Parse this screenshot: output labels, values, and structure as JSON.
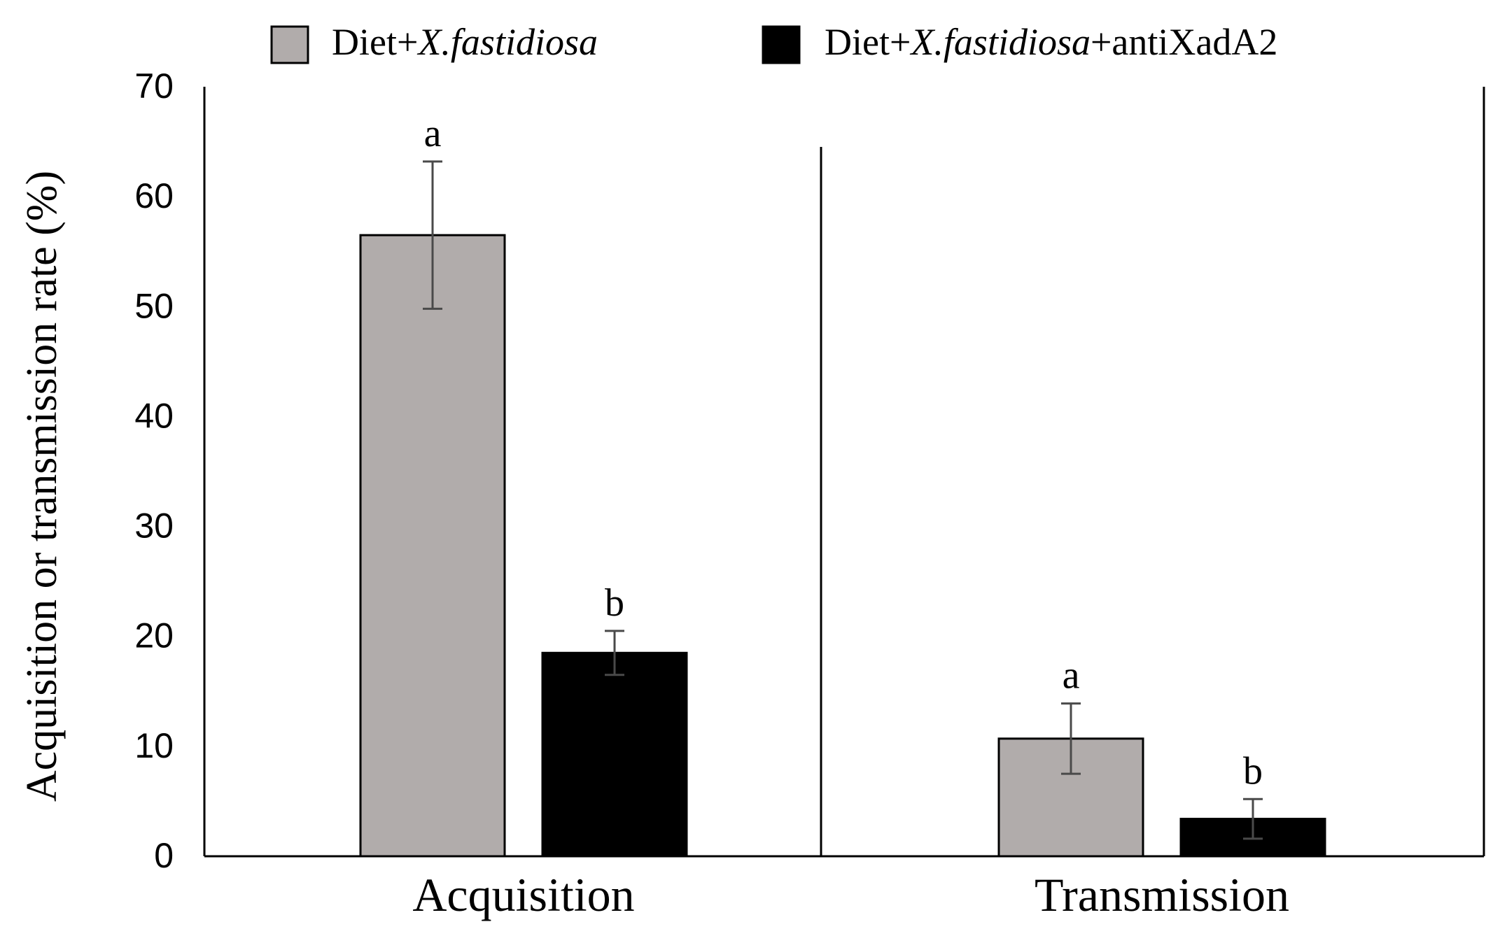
{
  "chart_data": {
    "type": "bar",
    "title": "",
    "xlabel": "",
    "ylabel": "Acquisition or transmission rate (%)",
    "ylim": [
      0,
      70
    ],
    "yticks": [
      0,
      10,
      20,
      30,
      40,
      50,
      60,
      70
    ],
    "categories": [
      "Acquisition",
      "Transmission"
    ],
    "legend_position": "top",
    "series": [
      {
        "name_prefix": "Diet+",
        "name_italic": "X.fastidiosa",
        "name_suffix": "",
        "color": "#b1acab",
        "values": [
          56.5,
          10.7
        ],
        "errors": [
          6.7,
          3.2
        ],
        "letters": [
          "a",
          "a"
        ]
      },
      {
        "name_prefix": "Diet+",
        "name_italic": "X.fastidiosa",
        "name_suffix": "+antiXadA2",
        "color": "#000000",
        "values": [
          18.5,
          3.4
        ],
        "errors": [
          2.0,
          1.8
        ],
        "letters": [
          "b",
          "b"
        ]
      }
    ]
  }
}
